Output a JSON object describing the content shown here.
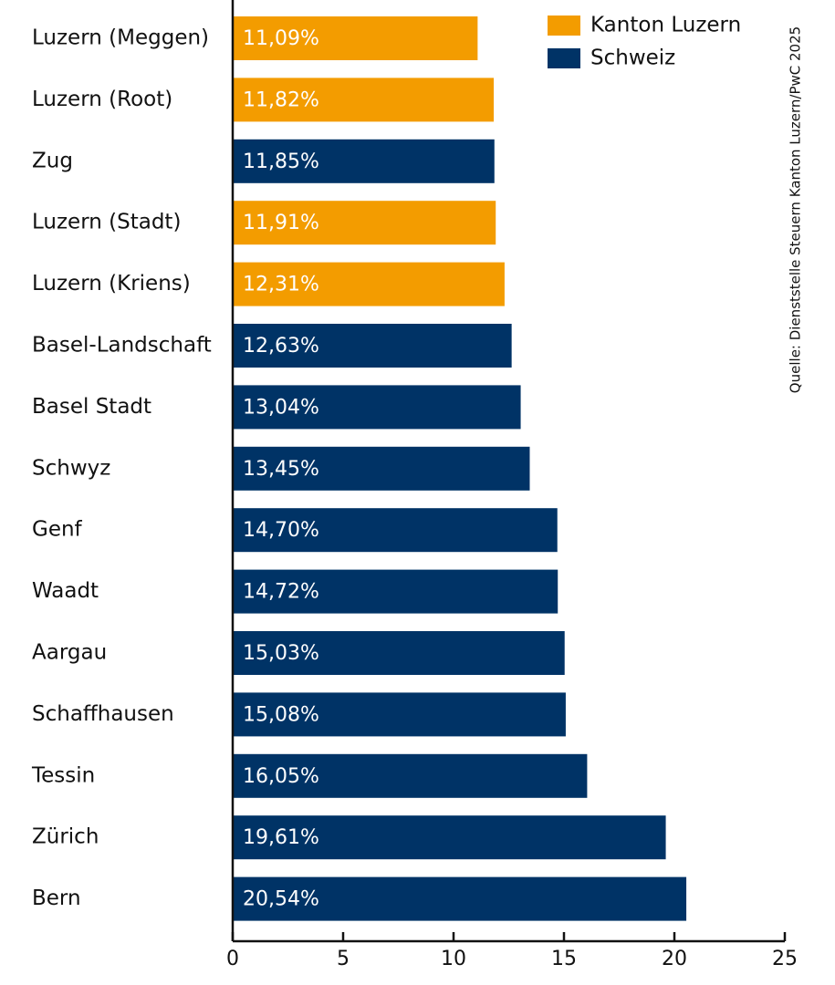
{
  "chart_data": {
    "type": "bar",
    "orientation": "horizontal",
    "source": "Quelle: Dienststelle Steuern Kanton Luzern/PwC 2025",
    "categories": [
      "Luzern (Meggen)",
      "Luzern (Root)",
      "Zug",
      "Luzern (Stadt)",
      "Luzern (Kriens)",
      "Basel-Landschaft",
      "Basel Stadt",
      "Schwyz",
      "Genf",
      "Waadt",
      "Aargau",
      "Schaffhausen",
      "Tessin",
      "Zürich",
      "Bern"
    ],
    "series": [
      {
        "name": "Kanton Luzern",
        "color": "#f39c00",
        "values": [
          11.09,
          11.82,
          null,
          11.91,
          12.31,
          null,
          null,
          null,
          null,
          null,
          null,
          null,
          null,
          null,
          null
        ],
        "value_labels": [
          "11,09%",
          "11,82%",
          null,
          "11,91%",
          "12,31%",
          null,
          null,
          null,
          null,
          null,
          null,
          null,
          null,
          null,
          null
        ]
      },
      {
        "name": "Schweiz",
        "color": "#003366",
        "values": [
          null,
          null,
          11.85,
          null,
          null,
          12.63,
          13.04,
          13.45,
          14.7,
          14.72,
          15.03,
          15.08,
          16.05,
          19.61,
          20.54
        ],
        "value_labels": [
          null,
          null,
          "11,85%",
          null,
          null,
          "12,63%",
          "13,04%",
          "13,45%",
          "14,70%",
          "14,72%",
          "15,03%",
          "15,08%",
          "16,05%",
          "19,61%",
          "20,54%"
        ]
      }
    ],
    "xlim": [
      0,
      25
    ],
    "xticks": [
      0,
      5,
      10,
      15,
      20,
      25
    ],
    "legend": "top-right"
  }
}
